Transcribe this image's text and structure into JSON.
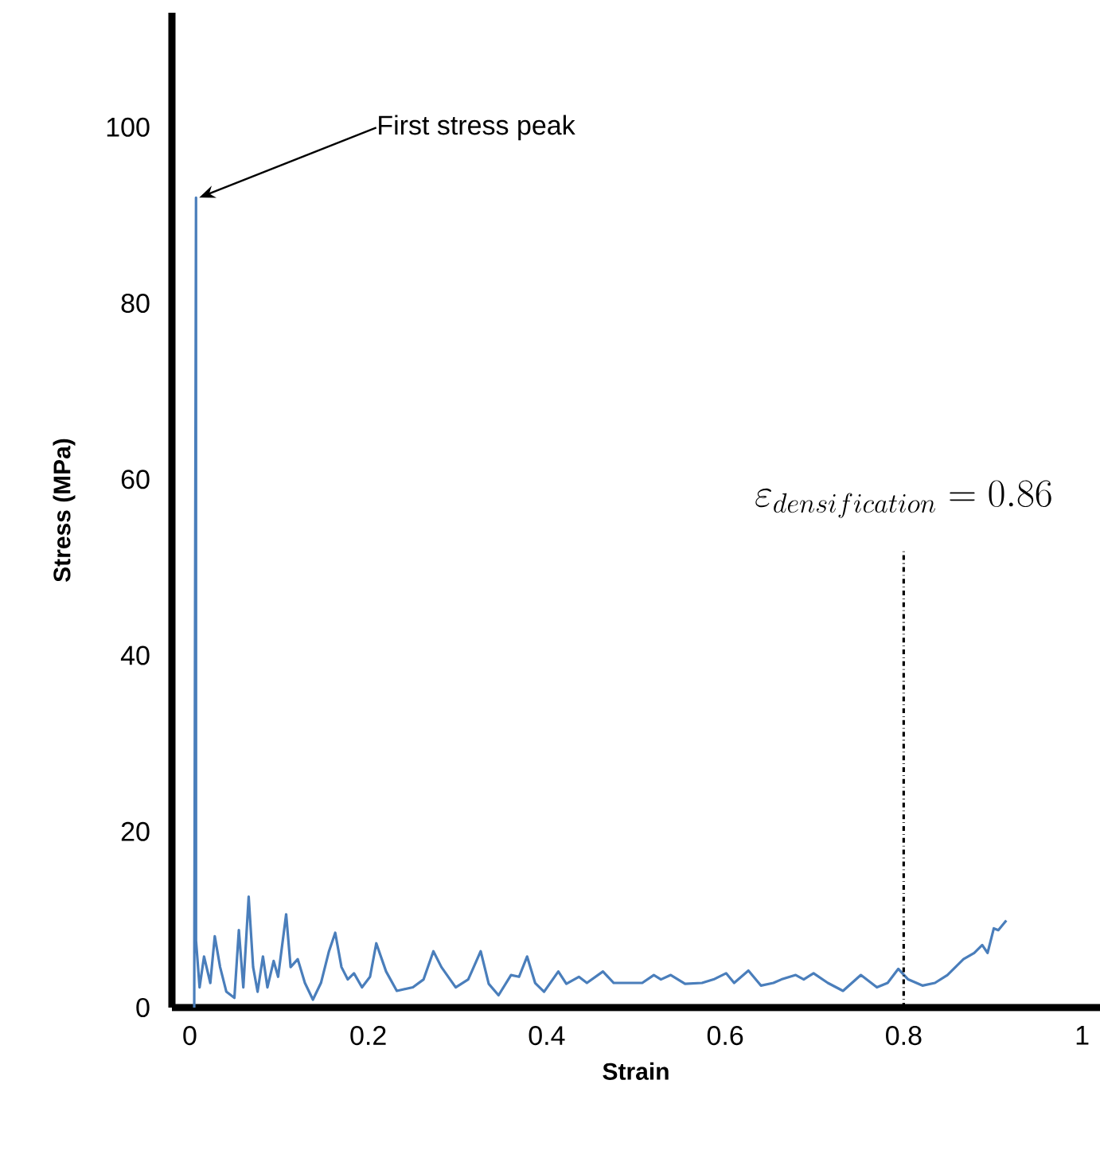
{
  "chart_data": {
    "type": "line",
    "xlabel": "Strain",
    "ylabel": "Stress (MPa)",
    "xlim": [
      -0.02,
      1.02
    ],
    "xticks": [
      0,
      0.2,
      0.4,
      0.6,
      0.8,
      1
    ],
    "ylim": [
      0,
      113
    ],
    "yticks": [
      0,
      20,
      40,
      60,
      80,
      100
    ],
    "grid": false,
    "marker": "none",
    "line_style": "solid",
    "series": [
      {
        "color": "#4a7ebb",
        "x": [
          0.005,
          0.007,
          0.007,
          0.011,
          0.016,
          0.023,
          0.028,
          0.034,
          0.041,
          0.05,
          0.055,
          0.06,
          0.066,
          0.071,
          0.076,
          0.082,
          0.087,
          0.094,
          0.099,
          0.108,
          0.113,
          0.121,
          0.129,
          0.138,
          0.147,
          0.156,
          0.163,
          0.17,
          0.177,
          0.184,
          0.193,
          0.202,
          0.209,
          0.22,
          0.232,
          0.25,
          0.262,
          0.273,
          0.282,
          0.298,
          0.312,
          0.316,
          0.326,
          0.335,
          0.346,
          0.36,
          0.369,
          0.378,
          0.387,
          0.397,
          0.413,
          0.422,
          0.436,
          0.445,
          0.463,
          0.475,
          0.493,
          0.507,
          0.52,
          0.528,
          0.539,
          0.555,
          0.574,
          0.587,
          0.601,
          0.61,
          0.626,
          0.64,
          0.654,
          0.663,
          0.679,
          0.688,
          0.699,
          0.715,
          0.732,
          0.752,
          0.77,
          0.782,
          0.794,
          0.805,
          0.821,
          0.835,
          0.849,
          0.867,
          0.879,
          0.888,
          0.894,
          0.901,
          0.906,
          0.915
        ],
        "values": [
          0,
          92,
          7.6,
          2.3,
          5.8,
          2.8,
          8.1,
          4.6,
          1.8,
          1.1,
          8.8,
          2.3,
          12.6,
          4.6,
          1.8,
          5.8,
          2.3,
          5.3,
          3.5,
          10.6,
          4.6,
          5.5,
          2.8,
          0.9,
          2.8,
          6.4,
          8.5,
          4.6,
          3.2,
          3.9,
          2.3,
          3.5,
          7.3,
          4.1,
          1.9,
          2.3,
          3.2,
          6.4,
          4.6,
          2.3,
          3.2,
          4.1,
          6.4,
          2.7,
          1.4,
          3.7,
          3.5,
          5.8,
          2.8,
          1.8,
          4.1,
          2.7,
          3.5,
          2.8,
          4.1,
          2.8,
          2.8,
          2.8,
          3.7,
          3.2,
          3.7,
          2.7,
          2.8,
          3.2,
          3.9,
          2.8,
          4.2,
          2.5,
          2.8,
          3.2,
          3.7,
          3.2,
          3.9,
          2.8,
          1.9,
          3.7,
          2.3,
          2.8,
          4.4,
          3.2,
          2.5,
          2.8,
          3.7,
          5.5,
          6.2,
          7.1,
          6.2,
          9,
          8.8,
          9.9
        ]
      }
    ],
    "ref_lines": [
      {
        "axis": "x",
        "value": 0.8,
        "color": "#000000",
        "line_style": "dashdotted"
      }
    ],
    "annotations": [
      {
        "text": "First stress peak",
        "x": 0.007,
        "y": 92
      },
      "\\varepsilon_{densification} = 0.86"
    ]
  }
}
